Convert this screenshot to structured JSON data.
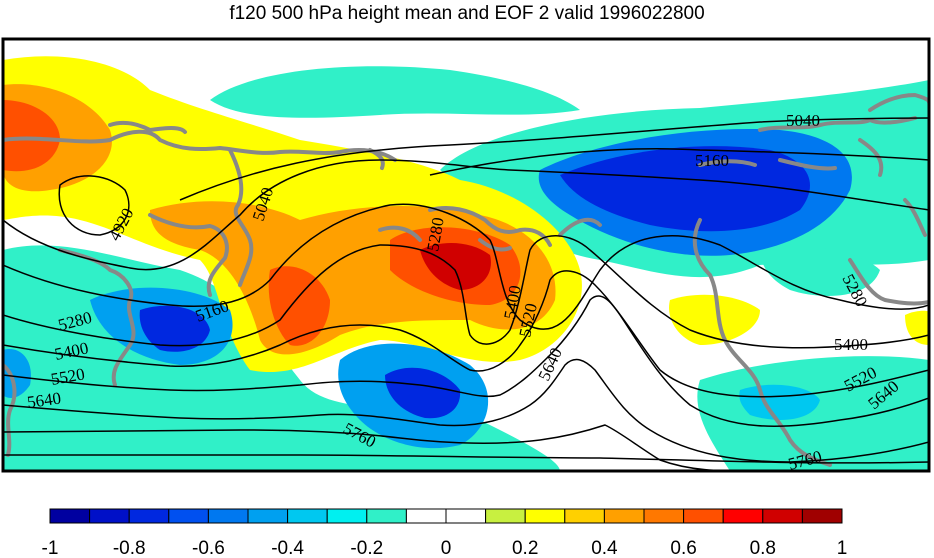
{
  "title": "f120 500 hPa height mean and EOF 2 valid 1996022800",
  "contour_labels": [
    "5040",
    "5160",
    "4920",
    "5040",
    "5280",
    "5160",
    "5280",
    "5400",
    "5520",
    "5640",
    "5400",
    "5520",
    "5640",
    "5760",
    "5760",
    "5280",
    "5400",
    "5520",
    "5640"
  ],
  "colorbar": {
    "ticks": [
      "-1",
      "-0.8",
      "-0.6",
      "-0.4",
      "-0.2",
      "0",
      "0.2",
      "0.4",
      "0.6",
      "0.8",
      "1"
    ],
    "colors": [
      "#0000a0",
      "#0010c8",
      "#0028e0",
      "#0050f0",
      "#0078f0",
      "#00a0f0",
      "#00c8f0",
      "#00f0f0",
      "#30f0c8",
      "#ffffff",
      "#ffffff",
      "#c8f040",
      "#ffff00",
      "#ffd000",
      "#ffa000",
      "#ff7800",
      "#ff5000",
      "#ff0000",
      "#d00000",
      "#a00000"
    ]
  },
  "palette": {
    "ocean_line": "#888888",
    "contour_line": "#000000"
  }
}
